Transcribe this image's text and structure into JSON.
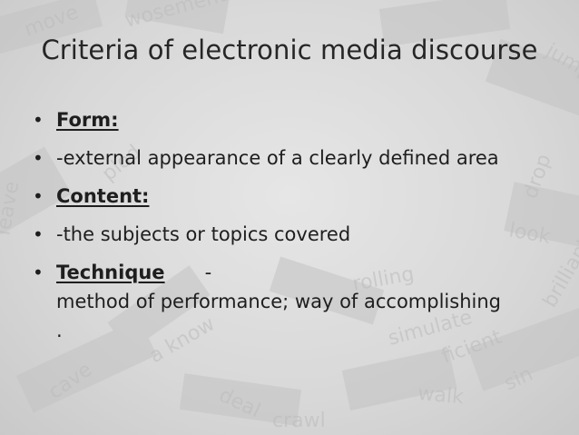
{
  "title": "Criteria of electronic media discourse",
  "bullets": {
    "b1": "Form:",
    "b2": "-external appearance of a clearly defined area",
    "b3": "Content:",
    "b4": "-the subjects or topics covered",
    "b5_term": "Technique",
    "b5_dash": "-",
    "b5_cont": "method of performance; way of accomplishing",
    "b5_end": "."
  },
  "bullet_glyph": "•",
  "background_words": [
    "leave",
    "jump",
    "wosement",
    "look",
    "drop",
    "simulate",
    "a know",
    "sin",
    "brilliant",
    "rolling",
    "ficient",
    "crawl",
    "walk",
    "move",
    "plod",
    "cave",
    "deal"
  ]
}
